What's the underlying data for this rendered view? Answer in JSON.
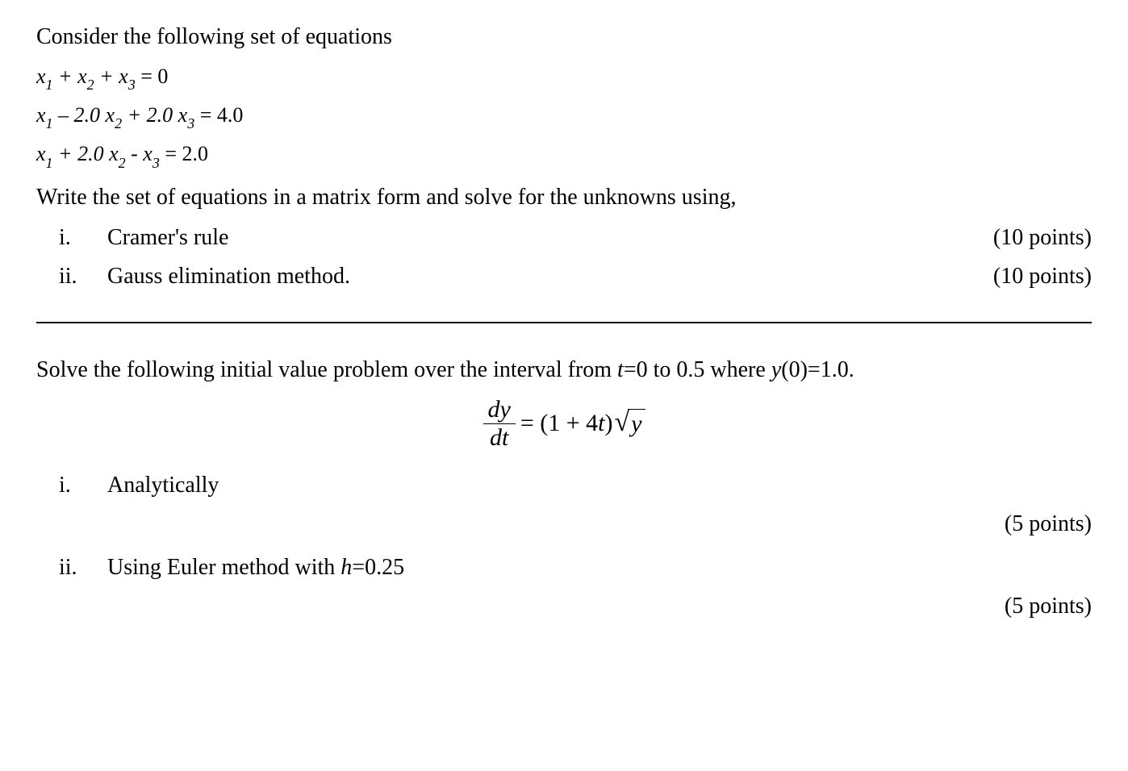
{
  "problem1": {
    "intro": "Consider the following set of equations",
    "eq1": {
      "lhs_terms": [
        "x",
        "1",
        " + x",
        "2",
        " + x",
        "3"
      ],
      "rhs": " = 0"
    },
    "eq2": {
      "text_parts": [
        "x",
        "1",
        " – 2.0 x",
        "2",
        " + 2.0 x",
        "3",
        " = 4.0"
      ]
    },
    "eq3": {
      "text_parts": [
        "x",
        "1",
        " + 2.0 x",
        "2",
        " - x",
        "3",
        " = 2.0"
      ]
    },
    "instruction": "Write the set of equations in a matrix form and solve for the unknowns using,",
    "items": [
      {
        "num": "i.",
        "text": "Cramer's rule",
        "points": "(10 points)"
      },
      {
        "num": "ii.",
        "text": "Gauss elimination method.",
        "points": "(10 points)"
      }
    ]
  },
  "problem2": {
    "intro_prefix": "Solve the following initial value problem over the interval from ",
    "intro_t": "t",
    "intro_mid": "=0 to 0.5 where ",
    "intro_y": "y",
    "intro_suffix": "(0)=1.0.",
    "formula": {
      "frac_num": "dy",
      "frac_den": "dt",
      "equals": " = (1 + 4",
      "t_var": "t",
      "close": ")",
      "sqrt_arg": "y"
    },
    "items": [
      {
        "num": "i.",
        "text": "Analytically",
        "points": "(5 points)"
      },
      {
        "num": "ii.",
        "text_prefix": "Using Euler method with ",
        "h_var": "h",
        "text_suffix": "=0.25",
        "points": "(5 points)"
      }
    ]
  }
}
